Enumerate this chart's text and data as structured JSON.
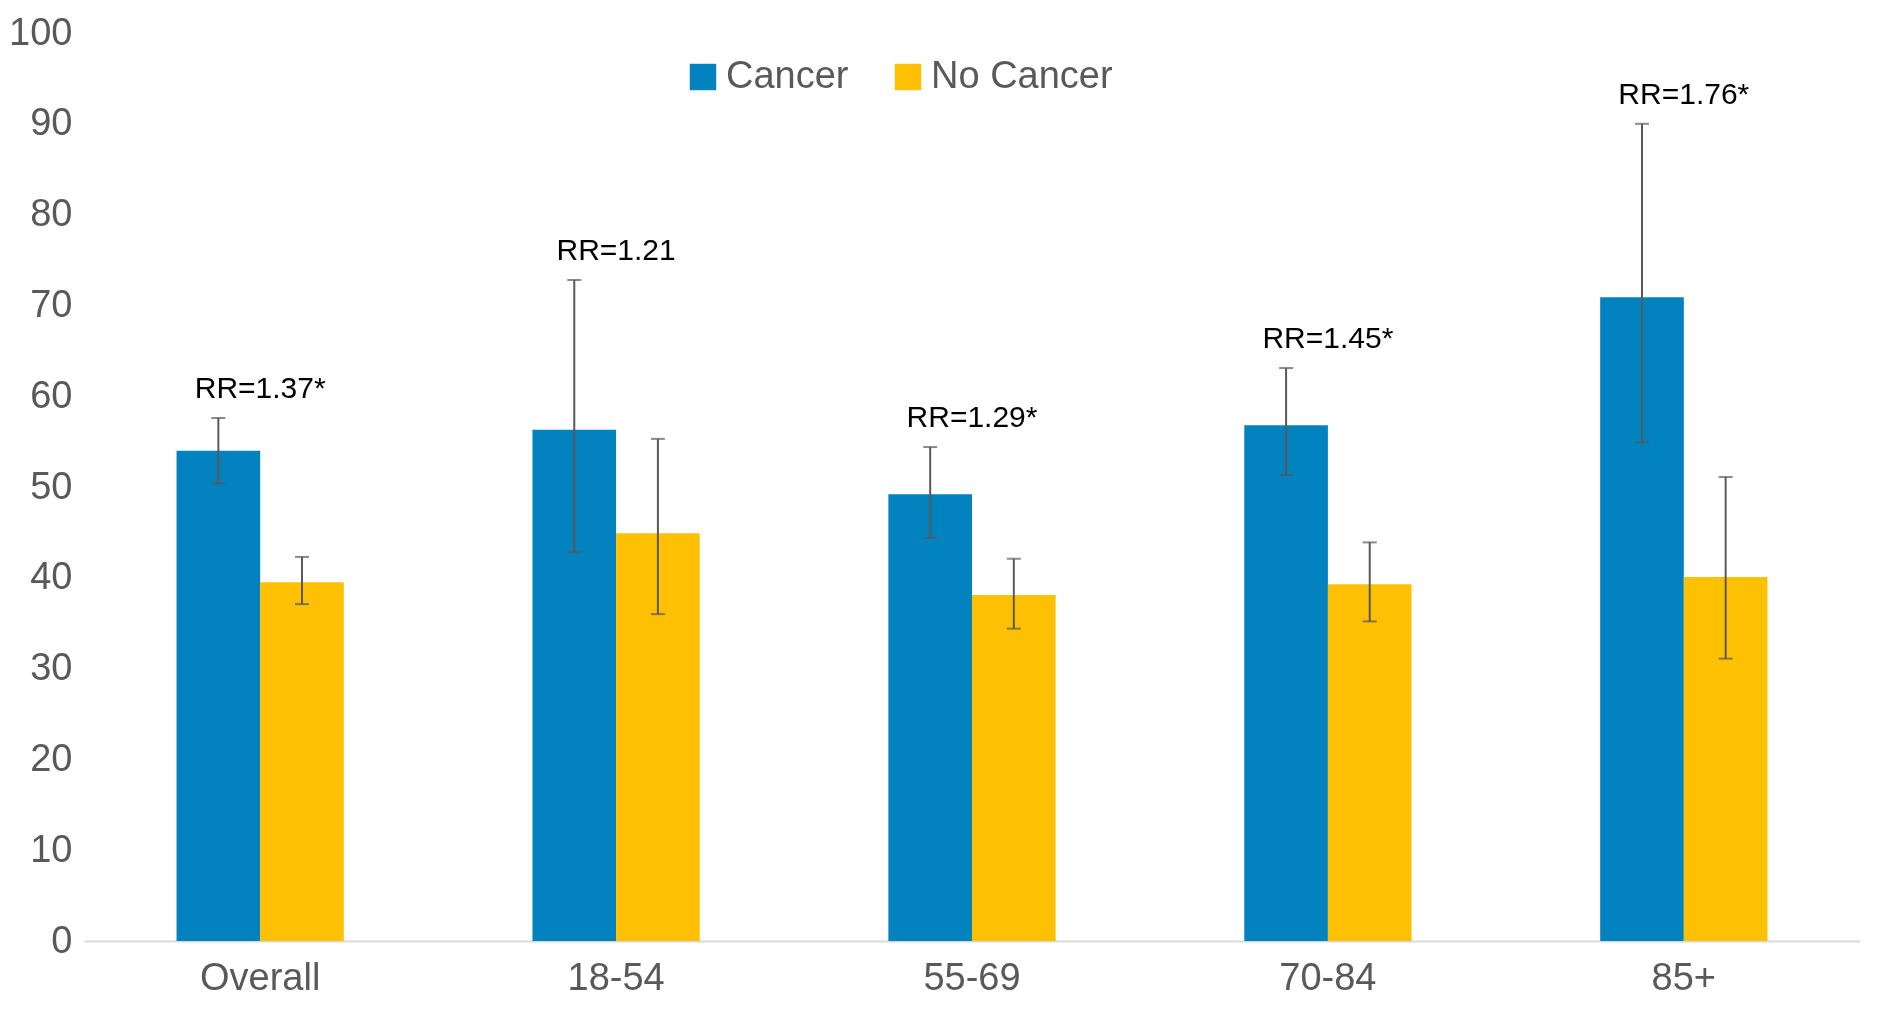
{
  "chart_data": {
    "type": "bar",
    "categories": [
      "Overall",
      "18-54",
      "55-69",
      "70-84",
      "85+"
    ],
    "series": [
      {
        "name": "Cancer",
        "color": "#0283c0",
        "values": [
          54.0,
          56.3,
          49.2,
          56.8,
          70.9
        ],
        "errors": [
          [
            50.4,
            57.6
          ],
          [
            42.8,
            72.8
          ],
          [
            44.4,
            54.4
          ],
          [
            51.3,
            63.1
          ],
          [
            54.9,
            90.0
          ]
        ]
      },
      {
        "name": "No Cancer",
        "color": "#fec002",
        "values": [
          39.5,
          44.9,
          38.1,
          39.3,
          40.1
        ],
        "errors": [
          [
            37.1,
            42.3
          ],
          [
            36.0,
            55.3
          ],
          [
            34.4,
            42.1
          ],
          [
            35.2,
            43.9
          ],
          [
            31.1,
            51.1
          ]
        ]
      }
    ],
    "ylim": [
      0,
      100
    ],
    "yticks": [
      0,
      10,
      20,
      30,
      40,
      50,
      60,
      70,
      80,
      90,
      100
    ],
    "grid": false,
    "legend": "top",
    "annotations": [
      "RR=1.37*",
      "RR=1.21",
      "RR=1.29*",
      "RR=1.45*",
      "RR=1.76*"
    ]
  }
}
